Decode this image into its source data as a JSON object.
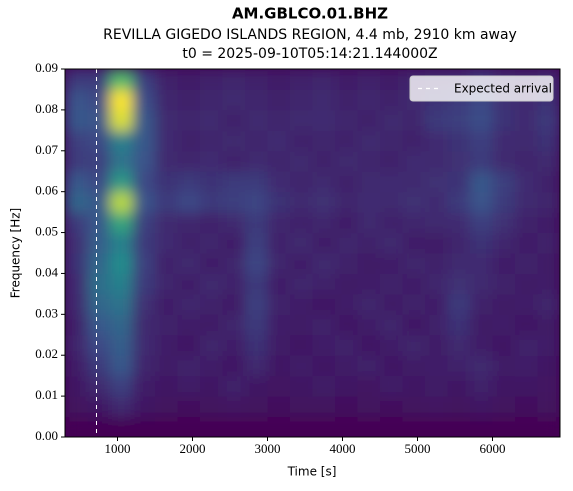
{
  "chart_data": {
    "type": "spectrogram",
    "title": "AM.GBLCO.01.BHZ",
    "subtitle": "REVILLA GIGEDO ISLANDS REGION, 4.4 mb, 2910 km away",
    "subtitle2": "t0 = 2025-09-10T05:14:21.144000Z",
    "x_label": "Time [s]",
    "y_label": "Frequency [Hz]",
    "colormap": "viridis",
    "xlim": [
      300,
      6900
    ],
    "ylim": [
      0,
      0.09
    ],
    "xticks": [
      1000,
      2000,
      3000,
      4000,
      5000,
      6000
    ],
    "yticks": [
      {
        "value": 0,
        "label": "0.00"
      },
      {
        "value": 0.01,
        "label": "0.01"
      },
      {
        "value": 0.02,
        "label": "0.02"
      },
      {
        "value": 0.03,
        "label": "0.03"
      },
      {
        "value": 0.04,
        "label": "0.04"
      },
      {
        "value": 0.05,
        "label": "0.05"
      },
      {
        "value": 0.06,
        "label": "0.06"
      },
      {
        "value": 0.07,
        "label": "0.07"
      },
      {
        "value": 0.08,
        "label": "0.08"
      },
      {
        "value": 0.09,
        "label": "0.09"
      }
    ],
    "xbins": [
      300,
      600,
      900,
      1200,
      1500,
      1800,
      2100,
      2400,
      2700,
      3000,
      3300,
      3600,
      3900,
      4200,
      4500,
      4800,
      5100,
      5400,
      5700,
      6000,
      6300,
      6600,
      6900
    ],
    "ybins": [
      0,
      0.005,
      0.01,
      0.015,
      0.02,
      0.025,
      0.03,
      0.035,
      0.04,
      0.045,
      0.05,
      0.055,
      0.06,
      0.065,
      0.07,
      0.075,
      0.08,
      0.085,
      0.09
    ],
    "z": [
      [
        0.03,
        0.03,
        0.03,
        0.03,
        0.03,
        0.03,
        0.03,
        0.03,
        0.03,
        0.03,
        0.03,
        0.03,
        0.03,
        0.03,
        0.03,
        0.03,
        0.03,
        0.03,
        0.03,
        0.03,
        0.03,
        0.03
      ],
      [
        0.08,
        0.1,
        0.15,
        0.1,
        0.08,
        0.07,
        0.08,
        0.09,
        0.08,
        0.07,
        0.08,
        0.08,
        0.07,
        0.08,
        0.07,
        0.08,
        0.09,
        0.08,
        0.1,
        0.08,
        0.07,
        0.08
      ],
      [
        0.1,
        0.15,
        0.22,
        0.12,
        0.1,
        0.11,
        0.1,
        0.13,
        0.1,
        0.09,
        0.1,
        0.11,
        0.1,
        0.09,
        0.12,
        0.1,
        0.11,
        0.1,
        0.13,
        0.1,
        0.1,
        0.09
      ],
      [
        0.12,
        0.2,
        0.3,
        0.14,
        0.11,
        0.13,
        0.12,
        0.1,
        0.15,
        0.1,
        0.12,
        0.1,
        0.11,
        0.13,
        0.1,
        0.11,
        0.12,
        0.13,
        0.15,
        0.11,
        0.12,
        0.1
      ],
      [
        0.14,
        0.25,
        0.32,
        0.16,
        0.12,
        0.1,
        0.14,
        0.12,
        0.18,
        0.11,
        0.1,
        0.12,
        0.13,
        0.1,
        0.12,
        0.14,
        0.11,
        0.15,
        0.12,
        0.1,
        0.13,
        0.12
      ],
      [
        0.13,
        0.3,
        0.35,
        0.15,
        0.13,
        0.12,
        0.11,
        0.14,
        0.2,
        0.12,
        0.11,
        0.13,
        0.1,
        0.12,
        0.14,
        0.1,
        0.13,
        0.18,
        0.11,
        0.12,
        0.1,
        0.11
      ],
      [
        0.15,
        0.35,
        0.4,
        0.17,
        0.12,
        0.14,
        0.13,
        0.11,
        0.22,
        0.13,
        0.12,
        0.1,
        0.12,
        0.14,
        0.11,
        0.13,
        0.12,
        0.2,
        0.13,
        0.11,
        0.12,
        0.14
      ],
      [
        0.16,
        0.38,
        0.45,
        0.2,
        0.14,
        0.12,
        0.15,
        0.13,
        0.2,
        0.12,
        0.14,
        0.13,
        0.11,
        0.12,
        0.13,
        0.12,
        0.14,
        0.17,
        0.15,
        0.13,
        0.11,
        0.12
      ],
      [
        0.18,
        0.35,
        0.5,
        0.22,
        0.13,
        0.15,
        0.12,
        0.14,
        0.24,
        0.14,
        0.12,
        0.15,
        0.13,
        0.11,
        0.12,
        0.14,
        0.13,
        0.15,
        0.16,
        0.12,
        0.13,
        0.11
      ],
      [
        0.17,
        0.32,
        0.45,
        0.2,
        0.16,
        0.13,
        0.14,
        0.12,
        0.22,
        0.13,
        0.15,
        0.12,
        0.14,
        0.13,
        0.15,
        0.12,
        0.11,
        0.14,
        0.18,
        0.14,
        0.12,
        0.13
      ],
      [
        0.2,
        0.3,
        0.6,
        0.22,
        0.15,
        0.14,
        0.13,
        0.15,
        0.2,
        0.14,
        0.13,
        0.14,
        0.12,
        0.15,
        0.13,
        0.14,
        0.15,
        0.16,
        0.22,
        0.17,
        0.13,
        0.12
      ],
      [
        0.35,
        0.3,
        0.9,
        0.28,
        0.2,
        0.25,
        0.2,
        0.22,
        0.24,
        0.18,
        0.15,
        0.17,
        0.14,
        0.16,
        0.15,
        0.17,
        0.16,
        0.2,
        0.28,
        0.2,
        0.15,
        0.14
      ],
      [
        0.3,
        0.25,
        0.55,
        0.25,
        0.18,
        0.2,
        0.18,
        0.2,
        0.2,
        0.16,
        0.14,
        0.15,
        0.13,
        0.15,
        0.16,
        0.15,
        0.17,
        0.18,
        0.3,
        0.22,
        0.16,
        0.13
      ],
      [
        0.2,
        0.22,
        0.4,
        0.28,
        0.15,
        0.14,
        0.16,
        0.13,
        0.15,
        0.14,
        0.15,
        0.13,
        0.15,
        0.14,
        0.13,
        0.16,
        0.15,
        0.17,
        0.2,
        0.15,
        0.14,
        0.15
      ],
      [
        0.22,
        0.25,
        0.45,
        0.3,
        0.16,
        0.13,
        0.14,
        0.15,
        0.14,
        0.16,
        0.13,
        0.14,
        0.13,
        0.15,
        0.14,
        0.13,
        0.16,
        0.18,
        0.22,
        0.16,
        0.15,
        0.18
      ],
      [
        0.3,
        0.28,
        0.95,
        0.3,
        0.15,
        0.14,
        0.15,
        0.13,
        0.15,
        0.14,
        0.15,
        0.16,
        0.14,
        0.13,
        0.15,
        0.14,
        0.2,
        0.22,
        0.26,
        0.18,
        0.16,
        0.2
      ],
      [
        0.28,
        0.25,
        1.0,
        0.26,
        0.14,
        0.13,
        0.14,
        0.15,
        0.14,
        0.13,
        0.14,
        0.15,
        0.13,
        0.14,
        0.13,
        0.15,
        0.18,
        0.2,
        0.25,
        0.17,
        0.15,
        0.18
      ],
      [
        0.2,
        0.2,
        0.7,
        0.22,
        0.13,
        0.12,
        0.13,
        0.14,
        0.13,
        0.12,
        0.13,
        0.14,
        0.12,
        0.13,
        0.12,
        0.14,
        0.15,
        0.16,
        0.2,
        0.15,
        0.14,
        0.16
      ]
    ],
    "vlines": [
      {
        "x": 720,
        "name": "Expected arrival",
        "color": "#ffffff"
      }
    ],
    "legend": "upper right"
  }
}
